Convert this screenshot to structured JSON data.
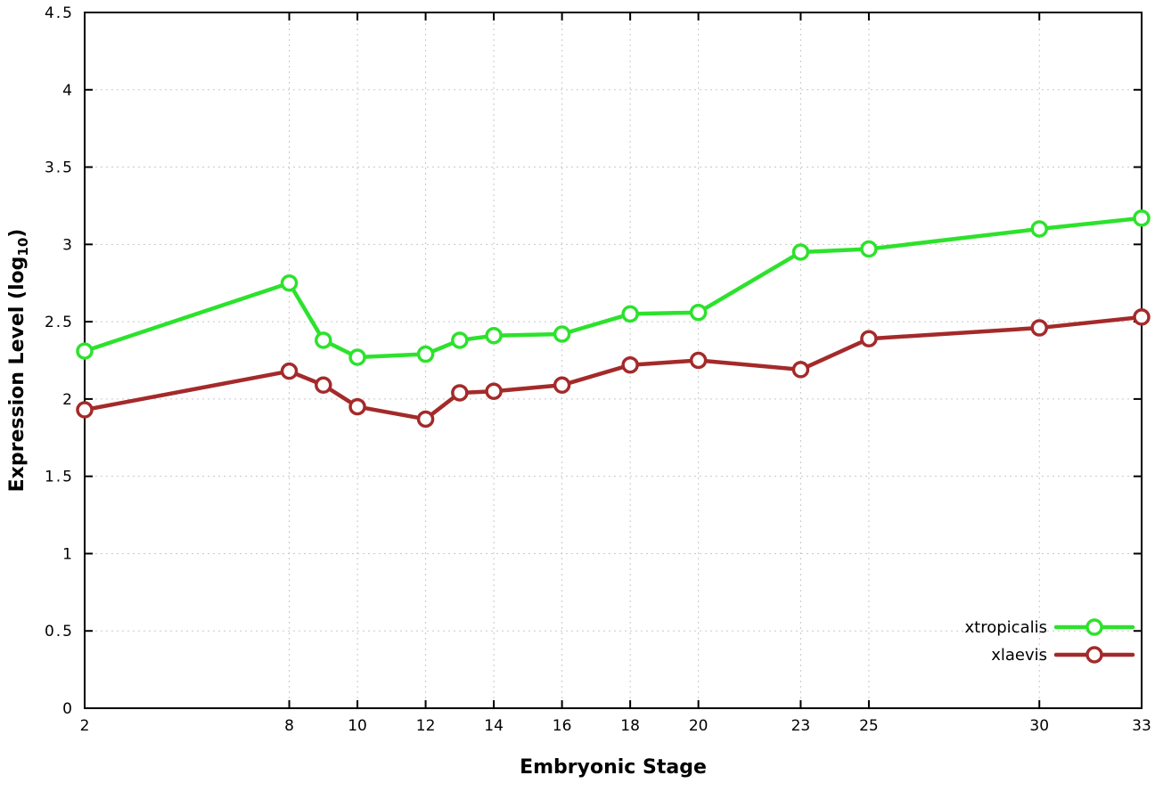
{
  "chart_data": {
    "type": "line",
    "title": "",
    "xlabel": "Embryonic Stage",
    "ylabel": "Expression Level (log10)",
    "ylabel_parts": {
      "pre": "Expression Level (log",
      "sub": "10",
      "post": ")"
    },
    "xlim": [
      2,
      33
    ],
    "ylim": [
      0,
      4.5
    ],
    "xticks": [
      2,
      8,
      10,
      12,
      14,
      16,
      18,
      20,
      23,
      25,
      30,
      33
    ],
    "yticks": [
      0,
      0.5,
      1,
      1.5,
      2,
      2.5,
      3,
      3.5,
      4,
      4.5
    ],
    "grid": true,
    "legend_position": "bottom-right",
    "x": [
      2,
      8,
      9,
      10,
      12,
      13,
      14,
      16,
      18,
      20,
      23,
      25,
      30,
      33
    ],
    "series": [
      {
        "name": "xtropicalis",
        "color": "#2ce22c",
        "values": [
          2.31,
          2.75,
          2.38,
          2.27,
          2.29,
          2.38,
          2.41,
          2.42,
          2.55,
          2.56,
          2.95,
          2.97,
          3.1,
          3.17
        ]
      },
      {
        "name": "xlaevis",
        "color": "#a42a2a",
        "values": [
          1.93,
          2.18,
          2.09,
          1.95,
          1.87,
          2.04,
          2.05,
          2.09,
          2.22,
          2.25,
          2.19,
          2.39,
          2.46,
          2.53
        ]
      }
    ],
    "colors": {
      "grid": "#c8c8c8",
      "axis": "#000000",
      "text": "#000000",
      "marker_fill": "#ffffff"
    }
  }
}
